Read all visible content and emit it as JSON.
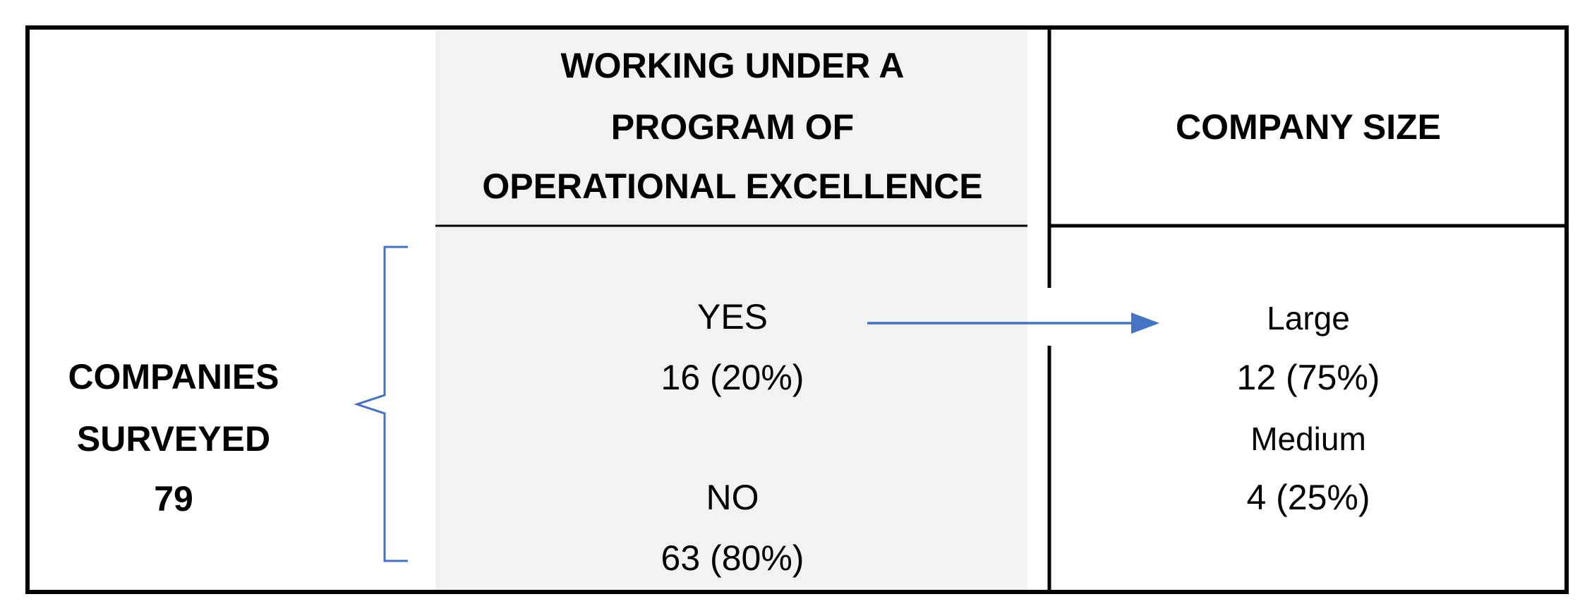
{
  "left_label": {
    "lines": [
      "COMPANIES",
      "SURVEYED",
      "79"
    ]
  },
  "program_column": {
    "header_lines": [
      "WORKING UNDER A",
      "PROGRAM OF",
      "OPERATIONAL EXCELLENCE"
    ],
    "items": [
      {
        "label": "YES",
        "value": "16 (20%)"
      },
      {
        "label": "NO",
        "value": "63 (80%)"
      }
    ]
  },
  "size_column": {
    "header": "COMPANY SIZE",
    "items": [
      {
        "label": "Large",
        "value": "12 (75%)"
      },
      {
        "label": "Medium",
        "value": "4 (25%)"
      }
    ]
  }
}
